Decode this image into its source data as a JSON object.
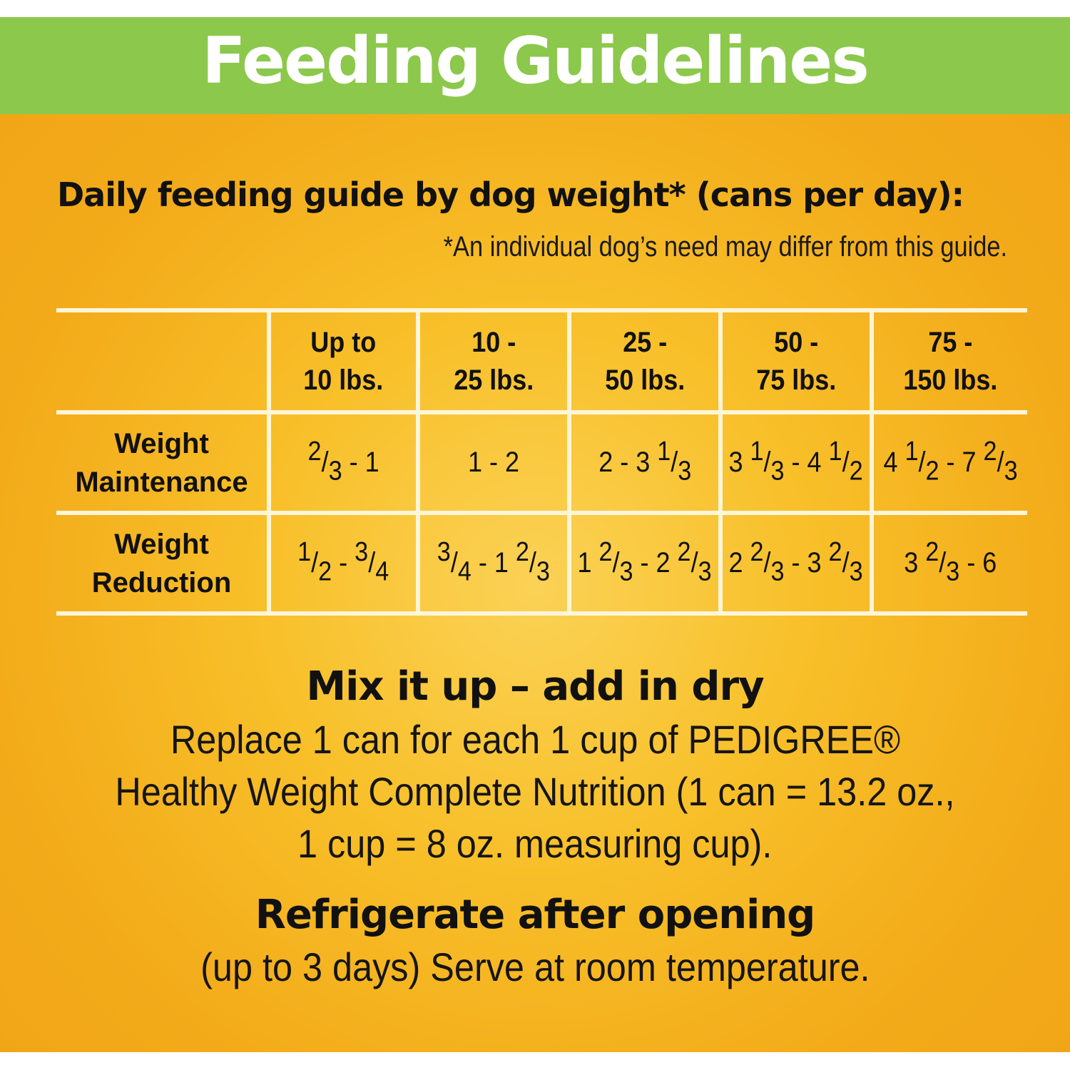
{
  "banner": {
    "title": "Feeding Guidelines"
  },
  "guide": {
    "title": "Daily feeding guide by dog weight* (cans per day):",
    "note": "*An individual dog’s need may differ from this guide."
  },
  "table": {
    "headers": [
      {
        "line1": "Up to",
        "line2": "10 lbs."
      },
      {
        "line1": "10 -",
        "line2": "25 lbs."
      },
      {
        "line1": "25 -",
        "line2": "50 lbs."
      },
      {
        "line1": "50 -",
        "line2": "75 lbs."
      },
      {
        "line1": "75 -",
        "line2": "150 lbs."
      }
    ],
    "rows": [
      {
        "label_line1": "Weight",
        "label_line2": "Maintenance",
        "values": [
          [
            {
              "sup": "2"
            },
            {
              "t": "/"
            },
            {
              "sub": "3"
            },
            {
              "t": " - 1"
            }
          ],
          [
            {
              "t": "1 - 2"
            }
          ],
          [
            {
              "t": "2 - 3 "
            },
            {
              "sup": "1"
            },
            {
              "t": "/"
            },
            {
              "sub": "3"
            }
          ],
          [
            {
              "t": "3 "
            },
            {
              "sup": "1"
            },
            {
              "t": "/"
            },
            {
              "sub": "3"
            },
            {
              "t": " - 4 "
            },
            {
              "sup": "1"
            },
            {
              "t": "/"
            },
            {
              "sub": "2"
            }
          ],
          [
            {
              "t": "4 "
            },
            {
              "sup": "1"
            },
            {
              "t": "/"
            },
            {
              "sub": "2"
            },
            {
              "t": " - 7 "
            },
            {
              "sup": "2"
            },
            {
              "t": "/"
            },
            {
              "sub": "3"
            }
          ]
        ]
      },
      {
        "label_line1": "Weight",
        "label_line2": "Reduction",
        "values": [
          [
            {
              "sup": "1"
            },
            {
              "t": "/"
            },
            {
              "sub": "2"
            },
            {
              "t": " - "
            },
            {
              "sup": "3"
            },
            {
              "t": "/"
            },
            {
              "sub": "4"
            }
          ],
          [
            {
              "sup": "3"
            },
            {
              "t": "/"
            },
            {
              "sub": "4"
            },
            {
              "t": " - 1 "
            },
            {
              "sup": "2"
            },
            {
              "t": "/"
            },
            {
              "sub": "3"
            }
          ],
          [
            {
              "t": "1 "
            },
            {
              "sup": "2"
            },
            {
              "t": "/"
            },
            {
              "sub": "3"
            },
            {
              "t": " - 2 "
            },
            {
              "sup": "2"
            },
            {
              "t": "/"
            },
            {
              "sub": "3"
            }
          ],
          [
            {
              "t": "2 "
            },
            {
              "sup": "2"
            },
            {
              "t": "/"
            },
            {
              "sub": "3"
            },
            {
              "t": " - 3 "
            },
            {
              "sup": "2"
            },
            {
              "t": "/"
            },
            {
              "sub": "3"
            }
          ],
          [
            {
              "t": "3 "
            },
            {
              "sup": "2"
            },
            {
              "t": "/"
            },
            {
              "sub": "3"
            },
            {
              "t": " - 6"
            }
          ]
        ]
      }
    ]
  },
  "mix": {
    "title": "Mix it up – add in dry",
    "lines": [
      "Replace 1 can for each 1 cup of PEDIGREE®",
      "Healthy Weight Complete Nutrition (1 can = 13.2 oz.,",
      "1 cup = 8 oz. measuring cup)."
    ]
  },
  "storage": {
    "title": "Refrigerate after opening",
    "text": "(up to 3 days) Serve at room temperature."
  }
}
